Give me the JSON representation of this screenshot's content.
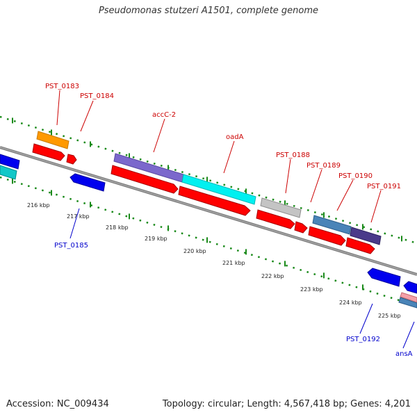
{
  "title": "Pseudomonas stutzeri A1501, complete genome",
  "footer": {
    "accession": "Accession: NC_009434",
    "summary": "Topology: circular; Length: 4,567,418 bp; Genes: 4,201"
  },
  "colors": {
    "backbone": "#7d7d7d",
    "rna_line": "#1a8a1a",
    "forward_gene": "#ff0000",
    "reverse_gene": "#0000ee",
    "forward_label": "#cc0000",
    "reverse_label": "#0000cc"
  },
  "ruler": [
    "216 kbp",
    "217 kbp",
    "218 kbp",
    "219 kbp",
    "220 kbp",
    "221 kbp",
    "222 kbp",
    "223 kbp",
    "224 kbp",
    "225 kbp"
  ],
  "genes": [
    {
      "name": "PST_0183",
      "strand": "forward",
      "label_color": "#cc0000"
    },
    {
      "name": "PST_0184",
      "strand": "forward",
      "label_color": "#cc0000"
    },
    {
      "name": "accC-2",
      "strand": "forward",
      "label_color": "#cc0000"
    },
    {
      "name": "oadA",
      "strand": "forward",
      "label_color": "#cc0000"
    },
    {
      "name": "PST_0188",
      "strand": "forward",
      "label_color": "#cc0000"
    },
    {
      "name": "PST_0189",
      "strand": "forward",
      "label_color": "#cc0000"
    },
    {
      "name": "PST_0190",
      "strand": "forward",
      "label_color": "#cc0000"
    },
    {
      "name": "PST_0191",
      "strand": "forward",
      "label_color": "#cc0000"
    },
    {
      "name": "PST_0185",
      "strand": "reverse",
      "label_color": "#0000cc"
    },
    {
      "name": "PST_0192",
      "strand": "reverse",
      "label_color": "#0000cc"
    },
    {
      "name": "ansA",
      "strand": "reverse",
      "label_color": "#0000cc"
    }
  ],
  "cog_colors": {
    "orange": "#ff9900",
    "purple": "#7b68cc",
    "cyan": "#00f0f0",
    "gray": "#c4c4c4",
    "steel": "#4a84b8",
    "indigo": "#4a3a8a",
    "teal": "#11c8c8",
    "pink": "#f4a0a8"
  }
}
